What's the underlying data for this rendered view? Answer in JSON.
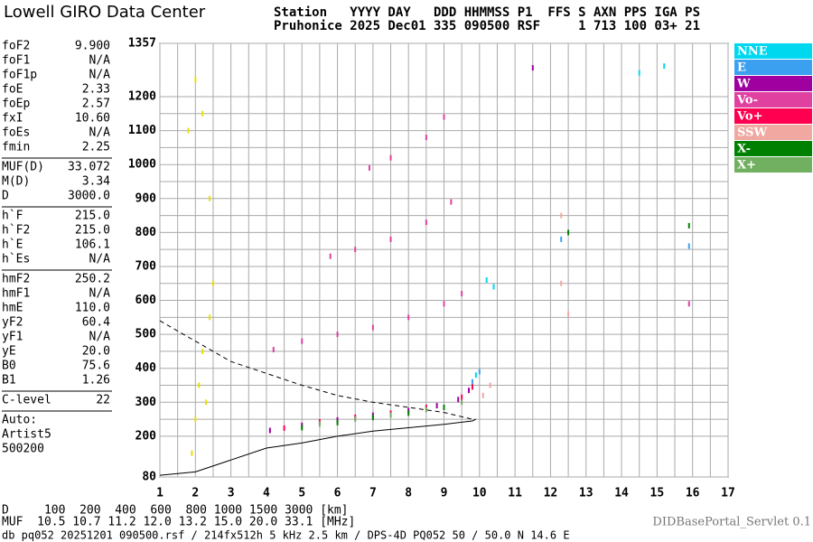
{
  "header": {
    "logo": "Lowell GIRO Data Center",
    "line1": "Station   YYYY DAY   DDD HHMMSS P1  FFS S AXN PPS IGA PS",
    "line2": "Pruhonice 2025 Dec01 335 090500 RSF     1 713 100 03+ 21"
  },
  "params": [
    [
      [
        "foF2",
        "9.900"
      ],
      [
        "foF1",
        "N/A"
      ],
      [
        "foF1p",
        "N/A"
      ],
      [
        "foE",
        "2.33"
      ],
      [
        "foEp",
        "2.57"
      ],
      [
        "fxI",
        "10.60"
      ],
      [
        "foEs",
        "N/A"
      ],
      [
        "fmin",
        "2.25"
      ]
    ],
    [
      [
        "MUF(D)",
        "33.072"
      ],
      [
        "M(D)",
        "3.34"
      ],
      [
        "D",
        "3000.0"
      ]
    ],
    [
      [
        "h`F",
        "215.0"
      ],
      [
        "h`F2",
        "215.0"
      ],
      [
        "h`E",
        "106.1"
      ],
      [
        "h`Es",
        "N/A"
      ]
    ],
    [
      [
        "hmF2",
        "250.2"
      ],
      [
        "hmF1",
        "N/A"
      ],
      [
        "hmE",
        "110.0"
      ],
      [
        "yF2",
        "60.4"
      ],
      [
        "yF1",
        "N/A"
      ],
      [
        "yE",
        "20.0"
      ],
      [
        "B0",
        "75.6"
      ],
      [
        "B1",
        "1.26"
      ]
    ],
    [
      [
        "C-level",
        "22"
      ]
    ],
    [
      [
        "Auto:",
        ""
      ],
      [
        "Artist5",
        ""
      ],
      [
        "500200",
        ""
      ]
    ]
  ],
  "footer": {
    "d_row": "D     100  200  400  600  800 1000 1500 3000 [km]",
    "muf_row": "MUF  10.5 10.7 11.2 12.0 13.2 15.0 20.0 33.1 [MHz]",
    "file_row": "db pq052 20251201 090500.rsf / 214fx512h 5 kHz 2.5 km / DPS-4D PQ052 50 / 50.0 N 14.6 E",
    "servlet": "DIDBasePortal_Servlet 0.1"
  },
  "chart_data": {
    "type": "scatter",
    "xlim": [
      1,
      17
    ],
    "xticks": [
      1,
      2,
      3,
      4,
      5,
      6,
      7,
      8,
      9,
      10,
      11,
      12,
      13,
      14,
      15,
      16,
      17
    ],
    "ylim": [
      80,
      1357
    ],
    "yticks": [
      80,
      200,
      300,
      400,
      500,
      600,
      700,
      800,
      900,
      1000,
      1100,
      1200,
      1357
    ],
    "grid": true,
    "series": [
      {
        "name": "NNE",
        "color": "#00d8f0",
        "x": [
          9.9,
          10.2,
          10.4,
          14.5,
          15.2
        ],
        "values": [
          380,
          660,
          640,
          1270,
          1290
        ]
      },
      {
        "name": "E",
        "color": "#3ca0f0",
        "x": [
          9.8,
          10.0,
          12.3,
          15.9
        ],
        "values": [
          360,
          390,
          780,
          760
        ]
      },
      {
        "name": "W",
        "color": "#a000a0",
        "x": [
          4.1,
          5.0,
          6.0,
          7.0,
          8.0,
          8.8,
          9.4,
          9.7,
          11.5
        ],
        "values": [
          217,
          232,
          248,
          262,
          276,
          290,
          308,
          335,
          1285
        ]
      },
      {
        "name": "Vo-",
        "color": "#e040a0",
        "x": [
          4.2,
          5.0,
          6.0,
          7.0,
          8.0,
          9.0,
          9.5,
          5.8,
          6.5,
          7.5,
          8.5,
          9.2,
          6.9,
          7.5,
          8.5,
          9.0,
          15.9
        ],
        "values": [
          455,
          480,
          500,
          520,
          550,
          590,
          620,
          730,
          750,
          780,
          830,
          890,
          990,
          1020,
          1080,
          1140,
          590
        ]
      },
      {
        "name": "Vo+",
        "color": "#ff0050",
        "x": [
          4.5,
          5.5,
          6.5,
          7.5,
          8.5,
          9.5,
          9.8
        ],
        "values": [
          224,
          242,
          256,
          268,
          285,
          315,
          345
        ]
      },
      {
        "name": "SSW",
        "color": "#f0a8a0",
        "x": [
          10.1,
          10.3,
          12.3,
          12.3,
          12.5
        ],
        "values": [
          320,
          350,
          650,
          850,
          560
        ]
      },
      {
        "name": "X-",
        "color": "#008000",
        "x": [
          5.0,
          6.0,
          7.0,
          8.0,
          9.0,
          12.5,
          15.9
        ],
        "values": [
          225,
          240,
          255,
          268,
          285,
          800,
          820
        ]
      },
      {
        "name": "X+",
        "color": "#70b060",
        "x": [
          5.5,
          6.5,
          7.5,
          8.5,
          9.5
        ],
        "values": [
          236,
          250,
          262,
          278,
          300
        ]
      },
      {
        "color": "#e8e000",
        "x": [
          1.9,
          2.0,
          2.1,
          2.2,
          2.3,
          2.4,
          2.5,
          2.2,
          2.0,
          1.8,
          2.4
        ],
        "values": [
          150,
          250,
          350,
          450,
          300,
          550,
          650,
          1150,
          1250,
          1100,
          900
        ]
      }
    ],
    "curves": [
      {
        "dash": true,
        "x": [
          1,
          2,
          3,
          4,
          5,
          6,
          7,
          8,
          9,
          9.8
        ],
        "values": [
          540,
          480,
          420,
          385,
          350,
          320,
          300,
          285,
          270,
          250
        ]
      },
      {
        "dash": false,
        "x": [
          1,
          2,
          3,
          4,
          5,
          6,
          7,
          8,
          9,
          9.8,
          9.9
        ],
        "values": [
          85,
          95,
          130,
          165,
          180,
          200,
          215,
          225,
          235,
          245,
          250
        ]
      }
    ]
  }
}
